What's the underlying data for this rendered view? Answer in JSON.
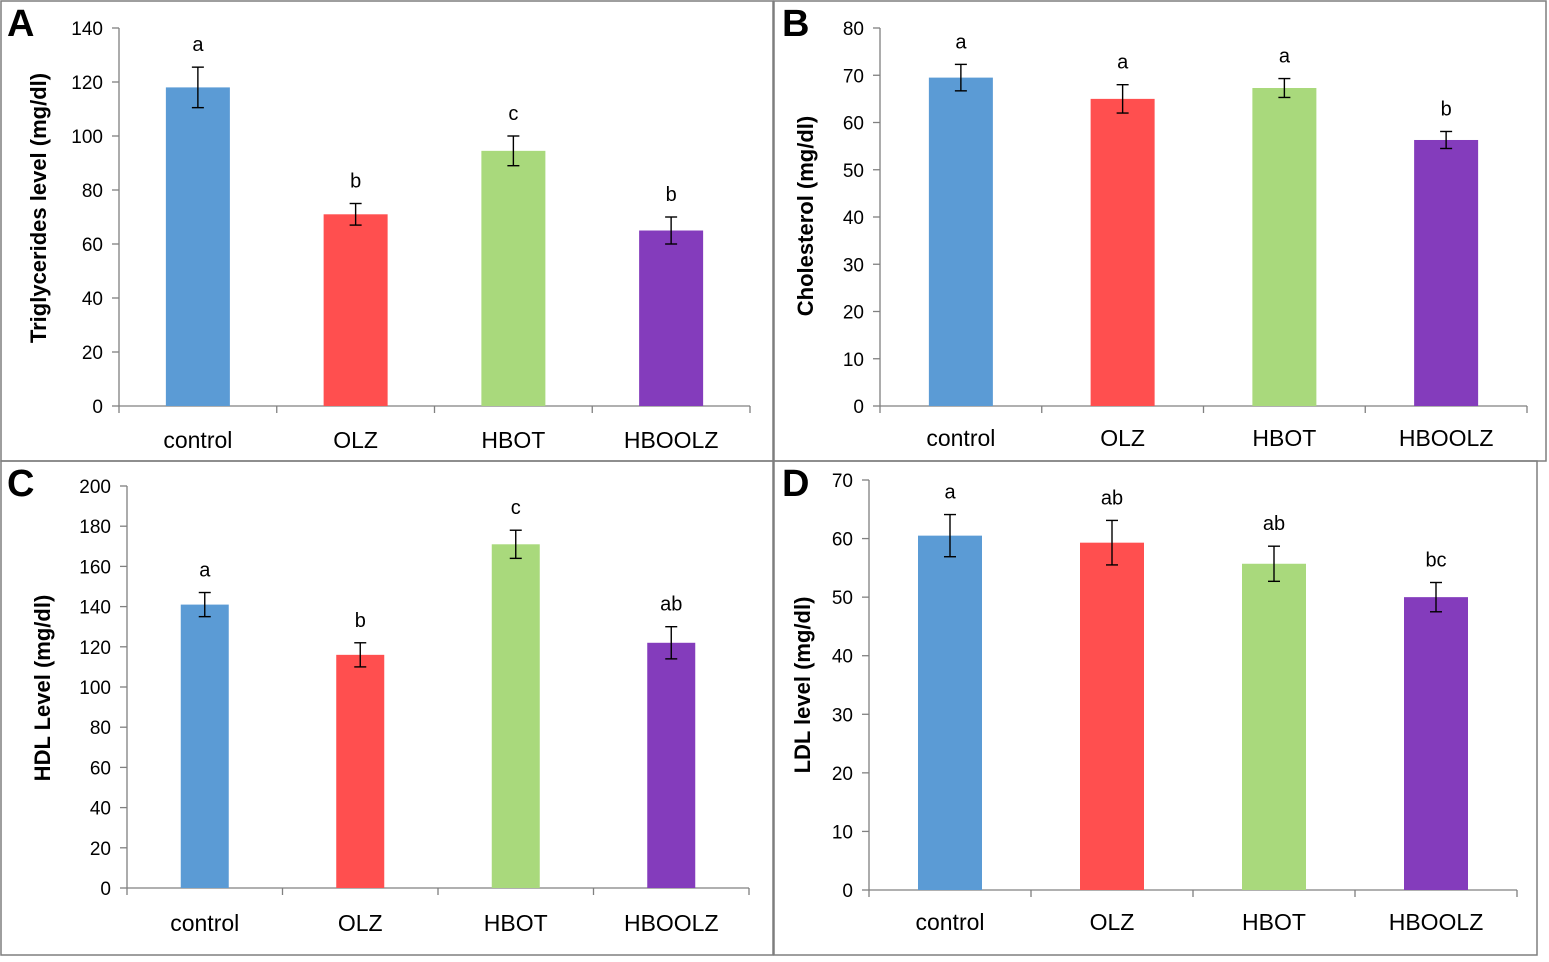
{
  "colors": {
    "control": "#5b9bd5",
    "OLZ": "#ff4f4f",
    "HBOT": "#a9d97c",
    "HBOOLZ": "#843cbc"
  },
  "chart_data": [
    {
      "panel": "A",
      "type": "bar",
      "categories": [
        "control",
        "OLZ",
        "HBOT",
        "HBOOLZ"
      ],
      "values": [
        118,
        71,
        94.5,
        65
      ],
      "errors": [
        7.5,
        4,
        5.5,
        5
      ],
      "significance": [
        "a",
        "b",
        "c",
        "b"
      ],
      "ylabel": "Triglycerides level (mg/dl)",
      "ylim": [
        0,
        140
      ],
      "yticks": [
        0,
        20,
        40,
        60,
        80,
        100,
        120,
        140
      ]
    },
    {
      "panel": "B",
      "type": "bar",
      "categories": [
        "control",
        "OLZ",
        "HBOT",
        "HBOOLZ"
      ],
      "values": [
        69.5,
        65,
        67.3,
        56.3
      ],
      "errors": [
        2.8,
        3,
        2,
        1.8
      ],
      "significance": [
        "a",
        "a",
        "a",
        "b"
      ],
      "ylabel": "Cholesterol (mg/dl)",
      "ylim": [
        0,
        80
      ],
      "yticks": [
        0,
        10,
        20,
        30,
        40,
        50,
        60,
        70,
        80
      ]
    },
    {
      "panel": "C",
      "type": "bar",
      "categories": [
        "control",
        "OLZ",
        "HBOT",
        "HBOOLZ"
      ],
      "values": [
        141,
        116,
        171,
        122
      ],
      "errors": [
        6,
        6,
        7,
        8
      ],
      "significance": [
        "a",
        "b",
        "c",
        "ab"
      ],
      "ylabel": "HDL Level (mg/dl)",
      "ylim": [
        0,
        200
      ],
      "yticks": [
        0,
        20,
        40,
        60,
        80,
        100,
        120,
        140,
        160,
        180,
        200
      ]
    },
    {
      "panel": "D",
      "type": "bar",
      "categories": [
        "control",
        "OLZ",
        "HBOT",
        "HBOOLZ"
      ],
      "values": [
        60.5,
        59.3,
        55.7,
        50
      ],
      "errors": [
        3.6,
        3.8,
        3,
        2.5
      ],
      "significance": [
        "a",
        "ab",
        "ab",
        "bc"
      ],
      "ylabel": "LDL level (mg/dl)",
      "ylim": [
        0,
        70
      ],
      "yticks": [
        0,
        10,
        20,
        30,
        40,
        50,
        60,
        70
      ]
    }
  ]
}
